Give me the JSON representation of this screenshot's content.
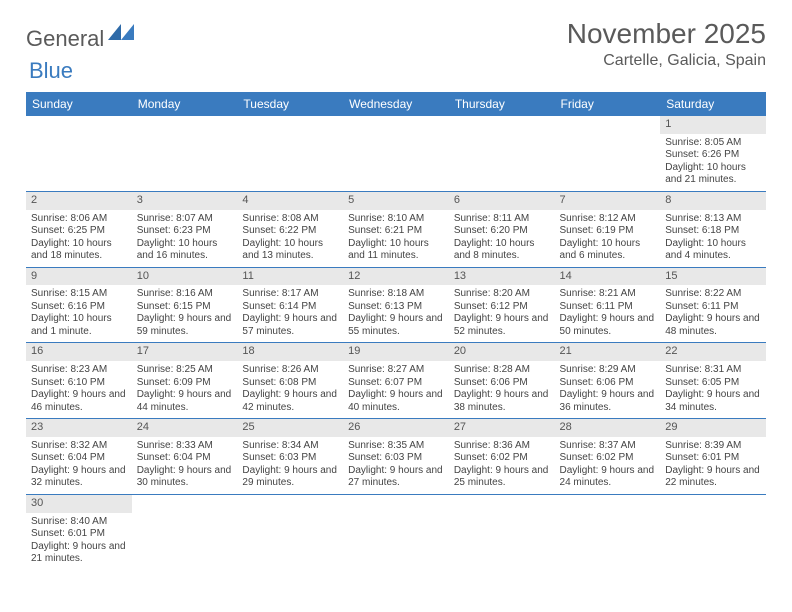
{
  "logo": {
    "main": "General",
    "sub": "Blue"
  },
  "title": "November 2025",
  "location": "Cartelle, Galicia, Spain",
  "colors": {
    "header_bg": "#3a7bbf",
    "header_text": "#ffffff",
    "daynum_bg": "#e8e8e8",
    "row_border": "#3a7bbf",
    "text": "#444444",
    "title_text": "#5a5a5a"
  },
  "day_headers": [
    "Sunday",
    "Monday",
    "Tuesday",
    "Wednesday",
    "Thursday",
    "Friday",
    "Saturday"
  ],
  "weeks": [
    [
      {
        "n": "",
        "sunrise": "",
        "sunset": "",
        "daylight": ""
      },
      {
        "n": "",
        "sunrise": "",
        "sunset": "",
        "daylight": ""
      },
      {
        "n": "",
        "sunrise": "",
        "sunset": "",
        "daylight": ""
      },
      {
        "n": "",
        "sunrise": "",
        "sunset": "",
        "daylight": ""
      },
      {
        "n": "",
        "sunrise": "",
        "sunset": "",
        "daylight": ""
      },
      {
        "n": "",
        "sunrise": "",
        "sunset": "",
        "daylight": ""
      },
      {
        "n": "1",
        "sunrise": "Sunrise: 8:05 AM",
        "sunset": "Sunset: 6:26 PM",
        "daylight": "Daylight: 10 hours and 21 minutes."
      }
    ],
    [
      {
        "n": "2",
        "sunrise": "Sunrise: 8:06 AM",
        "sunset": "Sunset: 6:25 PM",
        "daylight": "Daylight: 10 hours and 18 minutes."
      },
      {
        "n": "3",
        "sunrise": "Sunrise: 8:07 AM",
        "sunset": "Sunset: 6:23 PM",
        "daylight": "Daylight: 10 hours and 16 minutes."
      },
      {
        "n": "4",
        "sunrise": "Sunrise: 8:08 AM",
        "sunset": "Sunset: 6:22 PM",
        "daylight": "Daylight: 10 hours and 13 minutes."
      },
      {
        "n": "5",
        "sunrise": "Sunrise: 8:10 AM",
        "sunset": "Sunset: 6:21 PM",
        "daylight": "Daylight: 10 hours and 11 minutes."
      },
      {
        "n": "6",
        "sunrise": "Sunrise: 8:11 AM",
        "sunset": "Sunset: 6:20 PM",
        "daylight": "Daylight: 10 hours and 8 minutes."
      },
      {
        "n": "7",
        "sunrise": "Sunrise: 8:12 AM",
        "sunset": "Sunset: 6:19 PM",
        "daylight": "Daylight: 10 hours and 6 minutes."
      },
      {
        "n": "8",
        "sunrise": "Sunrise: 8:13 AM",
        "sunset": "Sunset: 6:18 PM",
        "daylight": "Daylight: 10 hours and 4 minutes."
      }
    ],
    [
      {
        "n": "9",
        "sunrise": "Sunrise: 8:15 AM",
        "sunset": "Sunset: 6:16 PM",
        "daylight": "Daylight: 10 hours and 1 minute."
      },
      {
        "n": "10",
        "sunrise": "Sunrise: 8:16 AM",
        "sunset": "Sunset: 6:15 PM",
        "daylight": "Daylight: 9 hours and 59 minutes."
      },
      {
        "n": "11",
        "sunrise": "Sunrise: 8:17 AM",
        "sunset": "Sunset: 6:14 PM",
        "daylight": "Daylight: 9 hours and 57 minutes."
      },
      {
        "n": "12",
        "sunrise": "Sunrise: 8:18 AM",
        "sunset": "Sunset: 6:13 PM",
        "daylight": "Daylight: 9 hours and 55 minutes."
      },
      {
        "n": "13",
        "sunrise": "Sunrise: 8:20 AM",
        "sunset": "Sunset: 6:12 PM",
        "daylight": "Daylight: 9 hours and 52 minutes."
      },
      {
        "n": "14",
        "sunrise": "Sunrise: 8:21 AM",
        "sunset": "Sunset: 6:11 PM",
        "daylight": "Daylight: 9 hours and 50 minutes."
      },
      {
        "n": "15",
        "sunrise": "Sunrise: 8:22 AM",
        "sunset": "Sunset: 6:11 PM",
        "daylight": "Daylight: 9 hours and 48 minutes."
      }
    ],
    [
      {
        "n": "16",
        "sunrise": "Sunrise: 8:23 AM",
        "sunset": "Sunset: 6:10 PM",
        "daylight": "Daylight: 9 hours and 46 minutes."
      },
      {
        "n": "17",
        "sunrise": "Sunrise: 8:25 AM",
        "sunset": "Sunset: 6:09 PM",
        "daylight": "Daylight: 9 hours and 44 minutes."
      },
      {
        "n": "18",
        "sunrise": "Sunrise: 8:26 AM",
        "sunset": "Sunset: 6:08 PM",
        "daylight": "Daylight: 9 hours and 42 minutes."
      },
      {
        "n": "19",
        "sunrise": "Sunrise: 8:27 AM",
        "sunset": "Sunset: 6:07 PM",
        "daylight": "Daylight: 9 hours and 40 minutes."
      },
      {
        "n": "20",
        "sunrise": "Sunrise: 8:28 AM",
        "sunset": "Sunset: 6:06 PM",
        "daylight": "Daylight: 9 hours and 38 minutes."
      },
      {
        "n": "21",
        "sunrise": "Sunrise: 8:29 AM",
        "sunset": "Sunset: 6:06 PM",
        "daylight": "Daylight: 9 hours and 36 minutes."
      },
      {
        "n": "22",
        "sunrise": "Sunrise: 8:31 AM",
        "sunset": "Sunset: 6:05 PM",
        "daylight": "Daylight: 9 hours and 34 minutes."
      }
    ],
    [
      {
        "n": "23",
        "sunrise": "Sunrise: 8:32 AM",
        "sunset": "Sunset: 6:04 PM",
        "daylight": "Daylight: 9 hours and 32 minutes."
      },
      {
        "n": "24",
        "sunrise": "Sunrise: 8:33 AM",
        "sunset": "Sunset: 6:04 PM",
        "daylight": "Daylight: 9 hours and 30 minutes."
      },
      {
        "n": "25",
        "sunrise": "Sunrise: 8:34 AM",
        "sunset": "Sunset: 6:03 PM",
        "daylight": "Daylight: 9 hours and 29 minutes."
      },
      {
        "n": "26",
        "sunrise": "Sunrise: 8:35 AM",
        "sunset": "Sunset: 6:03 PM",
        "daylight": "Daylight: 9 hours and 27 minutes."
      },
      {
        "n": "27",
        "sunrise": "Sunrise: 8:36 AM",
        "sunset": "Sunset: 6:02 PM",
        "daylight": "Daylight: 9 hours and 25 minutes."
      },
      {
        "n": "28",
        "sunrise": "Sunrise: 8:37 AM",
        "sunset": "Sunset: 6:02 PM",
        "daylight": "Daylight: 9 hours and 24 minutes."
      },
      {
        "n": "29",
        "sunrise": "Sunrise: 8:39 AM",
        "sunset": "Sunset: 6:01 PM",
        "daylight": "Daylight: 9 hours and 22 minutes."
      }
    ],
    [
      {
        "n": "30",
        "sunrise": "Sunrise: 8:40 AM",
        "sunset": "Sunset: 6:01 PM",
        "daylight": "Daylight: 9 hours and 21 minutes."
      },
      {
        "n": "",
        "sunrise": "",
        "sunset": "",
        "daylight": ""
      },
      {
        "n": "",
        "sunrise": "",
        "sunset": "",
        "daylight": ""
      },
      {
        "n": "",
        "sunrise": "",
        "sunset": "",
        "daylight": ""
      },
      {
        "n": "",
        "sunrise": "",
        "sunset": "",
        "daylight": ""
      },
      {
        "n": "",
        "sunrise": "",
        "sunset": "",
        "daylight": ""
      },
      {
        "n": "",
        "sunrise": "",
        "sunset": "",
        "daylight": ""
      }
    ]
  ]
}
